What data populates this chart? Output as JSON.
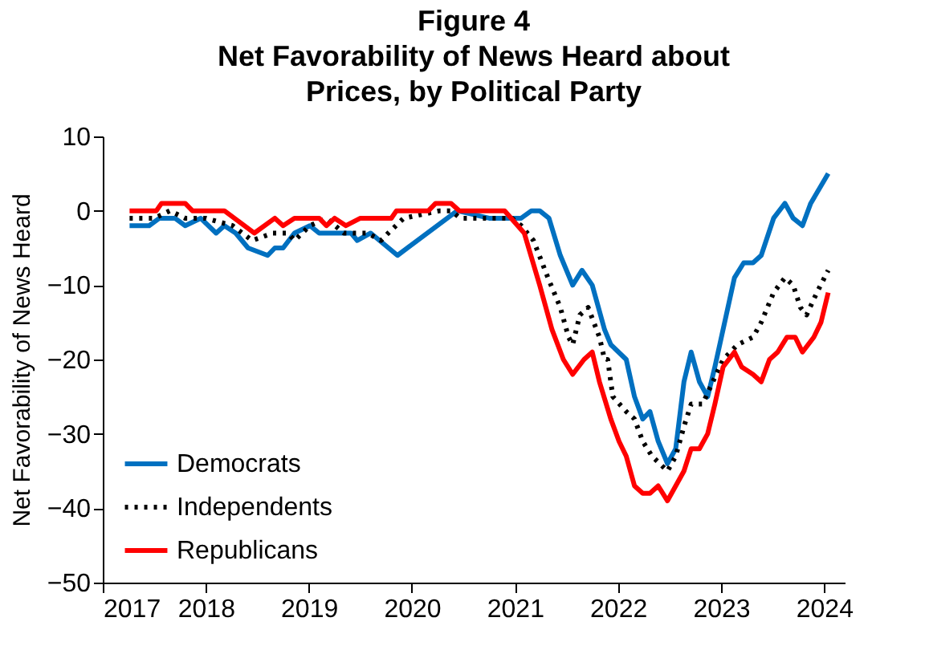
{
  "chart_data": {
    "type": "line",
    "title": "Figure 4",
    "subtitle": "Net Favorability of News Heard about\nPrices, by Political Party",
    "ylabel": "Net Favorability of News Heard",
    "xlim": [
      2017,
      2024.2
    ],
    "xticks": [
      2017,
      2018,
      2019,
      2020,
      2021,
      2022,
      2023,
      2024
    ],
    "ylim": [
      -50,
      10
    ],
    "yticks": [
      -50,
      -40,
      -30,
      -20,
      -10,
      0,
      10
    ],
    "grid": false,
    "legend": "bottom left",
    "marker": "none",
    "series": [
      {
        "name": "Democrats",
        "color": "#0070c0",
        "line_style": "solid",
        "x": [
          2017.26,
          2017.45,
          2017.55,
          2017.7,
          2017.8,
          2017.95,
          2018.1,
          2018.18,
          2018.29,
          2018.41,
          2018.6,
          2018.67,
          2018.75,
          2018.86,
          2019.01,
          2019.1,
          2019.41,
          2019.47,
          2019.6,
          2019.86,
          2020.44,
          2020.75,
          2021.06,
          2021.16,
          2021.24,
          2021.33,
          2021.44,
          2021.56,
          2021.65,
          2021.75,
          2021.87,
          2021.93,
          2022.08,
          2022.16,
          2022.24,
          2022.31,
          2022.39,
          2022.48,
          2022.56,
          2022.64,
          2022.71,
          2022.79,
          2022.87,
          2022.94,
          2023.13,
          2023.22,
          2023.31,
          2023.39,
          2023.51,
          2023.62,
          2023.7,
          2023.79,
          2023.87,
          2024.04
        ],
        "values": [
          -2,
          -2,
          -1,
          -1,
          -2,
          -1,
          -3,
          -2,
          -3,
          -5,
          -6,
          -5,
          -5,
          -3,
          -2,
          -3,
          -3,
          -4,
          -3,
          -6,
          0,
          -1,
          -1,
          0,
          0,
          -1,
          -6,
          -10,
          -8,
          -10,
          -16,
          -18,
          -20,
          -25,
          -28,
          -27,
          -31,
          -34,
          -32,
          -23,
          -19,
          -23,
          -25,
          -21,
          -9,
          -7,
          -7,
          -6,
          -1,
          1,
          -1,
          -2,
          1,
          5
        ]
      },
      {
        "name": "Independents",
        "color": "#000000",
        "line_style": "dotted",
        "x": [
          2017.26,
          2017.5,
          2017.65,
          2017.8,
          2018.0,
          2018.26,
          2018.45,
          2018.65,
          2018.8,
          2018.86,
          2019.01,
          2019.17,
          2019.34,
          2019.57,
          2019.7,
          2019.77,
          2019.92,
          2020.27,
          2020.38,
          2020.47,
          2020.75,
          2020.97,
          2021.06,
          2021.18,
          2021.32,
          2021.44,
          2021.52,
          2021.56,
          2021.63,
          2021.71,
          2021.82,
          2021.87,
          2021.9,
          2021.95,
          2022.08,
          2022.16,
          2022.24,
          2022.33,
          2022.48,
          2022.56,
          2022.64,
          2022.71,
          2022.82,
          2022.92,
          2023.02,
          2023.16,
          2023.31,
          2023.39,
          2023.51,
          2023.62,
          2023.7,
          2023.77,
          2023.83,
          2023.93,
          2024.04
        ],
        "values": [
          -1,
          -1,
          0,
          -1,
          -1,
          -2,
          -4,
          -3,
          -3,
          -4,
          -2,
          -1,
          -3,
          -3,
          -4,
          -3,
          -1,
          0,
          0,
          -1,
          -1,
          -1,
          -2,
          -4,
          -9,
          -13,
          -17,
          -18,
          -14,
          -13,
          -17,
          -20,
          -20,
          -25,
          -27,
          -28,
          -31,
          -33,
          -35,
          -33,
          -29,
          -26,
          -26,
          -23,
          -20,
          -18,
          -17,
          -15,
          -11,
          -9,
          -10,
          -13,
          -14,
          -11,
          -8
        ]
      },
      {
        "name": "Republicans",
        "color": "#ff0000",
        "line_style": "solid",
        "x": [
          2017.26,
          2017.52,
          2017.57,
          2017.8,
          2017.87,
          2018.18,
          2018.47,
          2018.67,
          2018.75,
          2018.86,
          2019.1,
          2019.17,
          2019.25,
          2019.36,
          2019.5,
          2019.8,
          2019.85,
          2020.16,
          2020.23,
          2020.38,
          2020.46,
          2020.9,
          2021.09,
          2021.24,
          2021.36,
          2021.47,
          2021.56,
          2021.67,
          2021.75,
          2021.82,
          2021.93,
          2022.01,
          2022.08,
          2022.16,
          2022.24,
          2022.31,
          2022.39,
          2022.48,
          2022.56,
          2022.64,
          2022.71,
          2022.79,
          2022.87,
          2022.94,
          2023.02,
          2023.13,
          2023.2,
          2023.31,
          2023.39,
          2023.47,
          2023.55,
          2023.64,
          2023.72,
          2023.79,
          2023.9,
          2023.97,
          2024.04
        ],
        "values": [
          0,
          0,
          1,
          1,
          0,
          0,
          -3,
          -1,
          -2,
          -1,
          -1,
          -2,
          -1,
          -2,
          -1,
          -1,
          0,
          0,
          1,
          1,
          0,
          0,
          -3,
          -10,
          -16,
          -20,
          -22,
          -20,
          -19,
          -23,
          -28,
          -31,
          -33,
          -37,
          -38,
          -38,
          -37,
          -39,
          -37,
          -35,
          -32,
          -32,
          -30,
          -26,
          -21,
          -19,
          -21,
          -22,
          -23,
          -20,
          -19,
          -17,
          -17,
          -19,
          -17,
          -15,
          -11
        ]
      }
    ]
  }
}
